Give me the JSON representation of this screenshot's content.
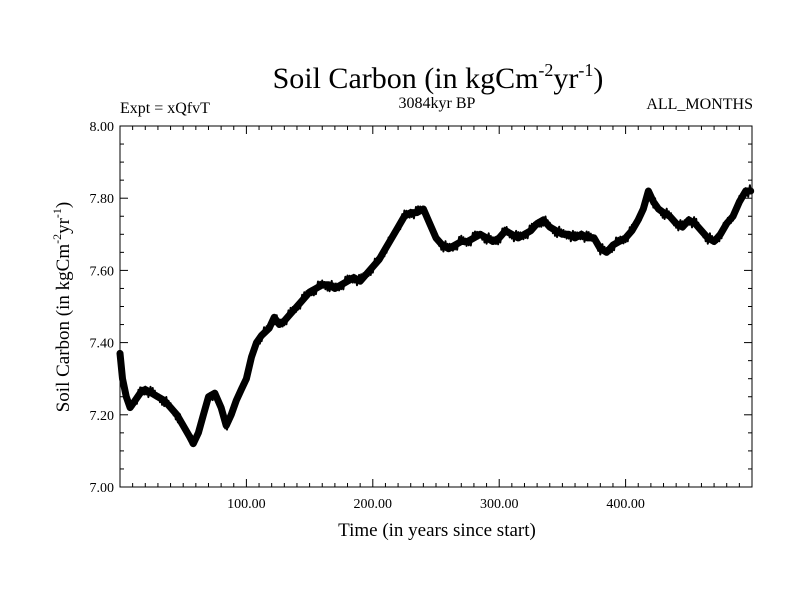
{
  "chart_data": {
    "type": "line",
    "title": {
      "base": "Soil Carbon (in kgCm",
      "sup1": "-2",
      "mid": "yr",
      "sup2": "-1",
      "end": ")"
    },
    "subtitle_left": "Expt = xQfvT",
    "subtitle_center": "3084kyr BP",
    "subtitle_right": "ALL_MONTHS",
    "xlabel": "Time (in years since start)",
    "ylabel": {
      "base": "Soil Carbon (in kgCm",
      "sup1": "-2",
      "mid": "yr",
      "sup2": "-1",
      "end": ")"
    },
    "xlim": [
      0,
      500
    ],
    "ylim": [
      7.0,
      8.0
    ],
    "x_ticks": [
      100,
      200,
      300,
      400
    ],
    "x_tick_labels": [
      "100.00",
      "200.00",
      "300.00",
      "400.00"
    ],
    "y_ticks": [
      7.0,
      7.2,
      7.4,
      7.6,
      7.8,
      8.0
    ],
    "y_tick_labels": [
      "7.00",
      "7.20",
      "7.40",
      "7.60",
      "7.80",
      "8.00"
    ],
    "grid": false,
    "series": [
      {
        "name": "Soil Carbon",
        "color": "#000000",
        "x": [
          0,
          2,
          5,
          8,
          12,
          16,
          20,
          25,
          30,
          35,
          40,
          45,
          50,
          55,
          58,
          62,
          66,
          70,
          75,
          80,
          84,
          88,
          92,
          96,
          100,
          104,
          108,
          112,
          118,
          122,
          126,
          130,
          135,
          140,
          145,
          150,
          155,
          160,
          165,
          170,
          175,
          180,
          185,
          190,
          195,
          200,
          205,
          210,
          215,
          220,
          225,
          230,
          235,
          240,
          245,
          250,
          255,
          260,
          265,
          270,
          275,
          280,
          285,
          290,
          295,
          300,
          305,
          310,
          315,
          320,
          325,
          330,
          335,
          340,
          345,
          350,
          355,
          360,
          365,
          370,
          375,
          380,
          385,
          390,
          395,
          400,
          405,
          410,
          414,
          418,
          422,
          426,
          430,
          435,
          440,
          445,
          450,
          455,
          460,
          465,
          470,
          475,
          480,
          485,
          490,
          495,
          499
        ],
        "values": [
          7.37,
          7.3,
          7.25,
          7.22,
          7.24,
          7.26,
          7.27,
          7.26,
          7.25,
          7.24,
          7.22,
          7.2,
          7.17,
          7.14,
          7.12,
          7.15,
          7.2,
          7.25,
          7.26,
          7.22,
          7.17,
          7.2,
          7.24,
          7.27,
          7.3,
          7.36,
          7.4,
          7.42,
          7.44,
          7.47,
          7.45,
          7.46,
          7.48,
          7.5,
          7.52,
          7.54,
          7.55,
          7.56,
          7.56,
          7.55,
          7.56,
          7.57,
          7.58,
          7.57,
          7.59,
          7.61,
          7.63,
          7.66,
          7.69,
          7.72,
          7.75,
          7.76,
          7.76,
          7.77,
          7.73,
          7.69,
          7.67,
          7.66,
          7.67,
          7.68,
          7.68,
          7.69,
          7.7,
          7.69,
          7.68,
          7.69,
          7.71,
          7.7,
          7.69,
          7.7,
          7.71,
          7.73,
          7.74,
          7.72,
          7.71,
          7.7,
          7.7,
          7.69,
          7.7,
          7.69,
          7.69,
          7.66,
          7.65,
          7.67,
          7.68,
          7.69,
          7.71,
          7.74,
          7.77,
          7.82,
          7.79,
          7.77,
          7.76,
          7.75,
          7.73,
          7.72,
          7.74,
          7.73,
          7.71,
          7.69,
          7.68,
          7.7,
          7.73,
          7.75,
          7.79,
          7.82,
          7.82
        ]
      }
    ]
  }
}
